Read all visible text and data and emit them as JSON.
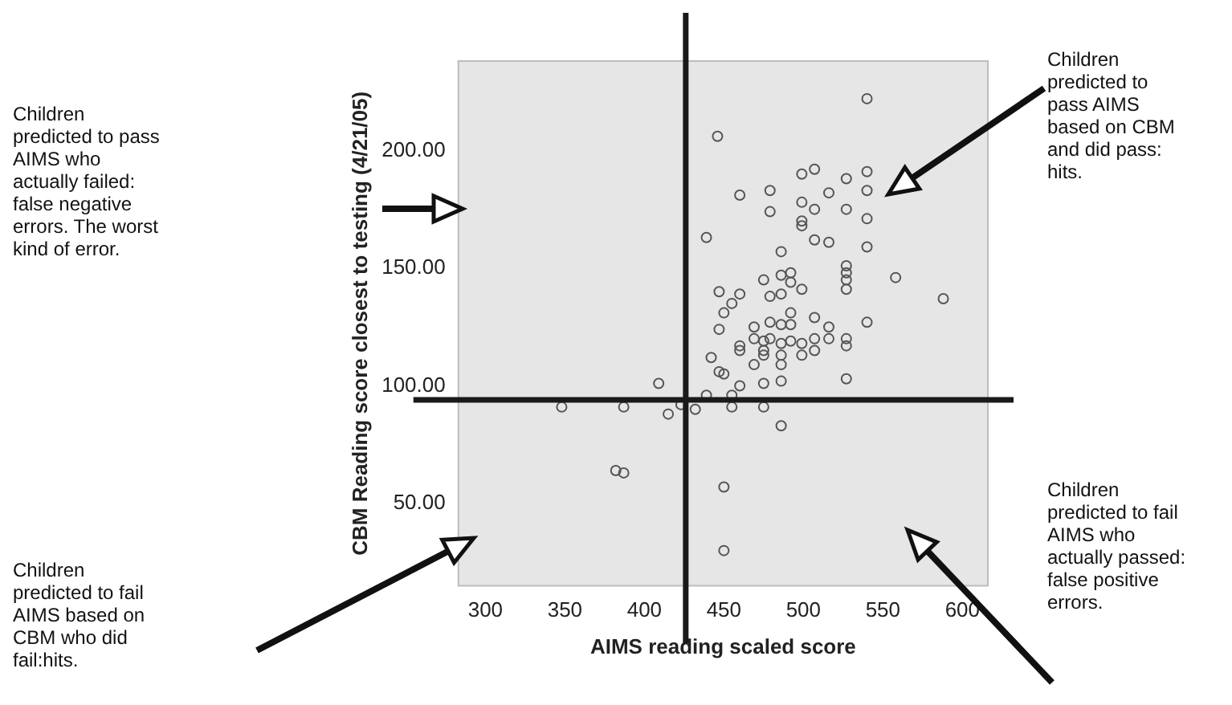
{
  "chart_data": {
    "type": "scatter",
    "xlabel": "AIMS reading scaled score",
    "ylabel": "CBM Reading score closest to testing (4/21/05)",
    "x": [
      446,
      460,
      479,
      479,
      439,
      486,
      475,
      486,
      492,
      492,
      447,
      460,
      479,
      486,
      455,
      450,
      492,
      447,
      469,
      479,
      486,
      492,
      469,
      475,
      479,
      486,
      492,
      460,
      460,
      475,
      475,
      486,
      442,
      469,
      486,
      447,
      450,
      460,
      475,
      486,
      409,
      439,
      455,
      348,
      387,
      415,
      423,
      432,
      455,
      475,
      486,
      382,
      387,
      450,
      450,
      540,
      499,
      507,
      527,
      540,
      540,
      516,
      499,
      507,
      527,
      540,
      499,
      499,
      507,
      516,
      540,
      558,
      588,
      527,
      527,
      527,
      527,
      499,
      507,
      516,
      540,
      516,
      527,
      527,
      507,
      507,
      499,
      499,
      527
    ],
    "series": [
      {
        "color": "#555555",
        "values": [
          206,
          181,
          183,
          174,
          163,
          157,
          145,
          147,
          148,
          144,
          140,
          139,
          138,
          139,
          135,
          131,
          131,
          124,
          125,
          127,
          126,
          126,
          120,
          119,
          120,
          118,
          119,
          117,
          115,
          115,
          113,
          113,
          112,
          109,
          109,
          106,
          105,
          100,
          101,
          102,
          101,
          96,
          96,
          91,
          91,
          88,
          92,
          90,
          91,
          91,
          83,
          64,
          63,
          57,
          30,
          222,
          190,
          192,
          188,
          191,
          183,
          182,
          178,
          175,
          175,
          171,
          170,
          168,
          162,
          161,
          159,
          146,
          137,
          151,
          148,
          145,
          141,
          141,
          129,
          125,
          127,
          120,
          120,
          117,
          120,
          115,
          118,
          113,
          103
        ]
      }
    ],
    "xlim": [
      283,
      616
    ],
    "ylim": [
      15,
      238
    ],
    "xticks": [
      300,
      350,
      400,
      450,
      500,
      550,
      600
    ],
    "yticks": [
      {
        "value": 50,
        "label": "50.00"
      },
      {
        "value": 100,
        "label": "100.00"
      },
      {
        "value": 150,
        "label": "150.00"
      },
      {
        "value": 200,
        "label": "200.00"
      }
    ],
    "ref_lines": [
      {
        "axis": "x",
        "value": 426,
        "color": "#1a1a1a"
      },
      {
        "axis": "y",
        "value": 94,
        "color": "#1a1a1a"
      }
    ],
    "annotations": [
      "Children predicted to pass AIMS who actually failed: false negative errors. The worst kind of error.",
      "Children predicted to fail AIMS based on CBM who did fail:hits.",
      "Children predicted to pass AIMS based on CBM and did pass: hits.",
      "Children predicted to fail AIMS who actually passed: false positive errors."
    ],
    "grid": false,
    "legend": false,
    "marker": "circle"
  }
}
